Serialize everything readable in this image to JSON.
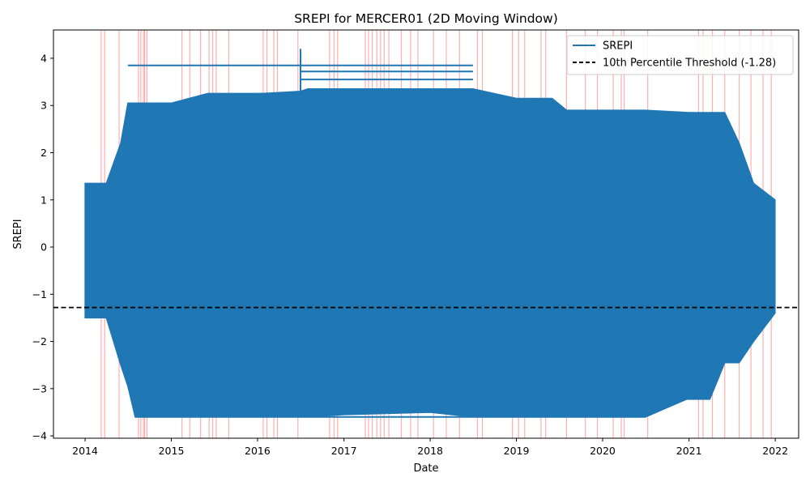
{
  "chart_data": {
    "type": "line",
    "title": "SREPI for MERCER01 (2D Moving Window)",
    "xlabel": "Date",
    "ylabel": "SREPI",
    "xlim": [
      "2013-08-20",
      "2022-04-10"
    ],
    "ylim": [
      -4.05,
      4.6
    ],
    "x_ticks": [
      "2014",
      "2015",
      "2016",
      "2017",
      "2018",
      "2019",
      "2020",
      "2021",
      "2022"
    ],
    "y_ticks": [
      -4,
      -3,
      -2,
      -1,
      0,
      1,
      2,
      3,
      4
    ],
    "y_tick_labels": [
      "−4",
      "−3",
      "−2",
      "−1",
      "0",
      "1",
      "2",
      "3",
      "4"
    ],
    "threshold": {
      "value": -1.28,
      "label": "10th Percentile Threshold (-1.28)",
      "color": "#000000",
      "style": "dashed"
    },
    "legend": {
      "position": "top-right",
      "entries": [
        "SREPI",
        "10th Percentile Threshold (-1.28)"
      ]
    },
    "grid": false,
    "series": [
      {
        "name": "SREPI",
        "color": "#1f77b4",
        "envelope": {
          "x": [
            "2014-01-01",
            "2014-04-01",
            "2014-06-01",
            "2014-07-01",
            "2014-08-01",
            "2014-10-01",
            "2015-01-01",
            "2015-06-01",
            "2016-01-01",
            "2016-07-01",
            "2016-08-01",
            "2017-01-01",
            "2018-01-01",
            "2018-07-01",
            "2019-01-01",
            "2019-06-01",
            "2019-08-01",
            "2020-01-01",
            "2020-07-01",
            "2021-01-01",
            "2021-04-01",
            "2021-06-01",
            "2021-08-01",
            "2021-10-01",
            "2021-12-31"
          ],
          "upper": [
            1.35,
            1.35,
            2.2,
            3.05,
            3.05,
            3.05,
            3.05,
            3.25,
            3.25,
            3.3,
            3.35,
            3.35,
            3.35,
            3.35,
            3.15,
            3.15,
            2.9,
            2.9,
            2.9,
            2.85,
            2.85,
            2.85,
            2.2,
            1.35,
            1.0
          ],
          "lower": [
            -1.5,
            -1.5,
            -2.5,
            -2.95,
            -3.6,
            -3.6,
            -3.6,
            -3.6,
            -3.6,
            -3.6,
            -3.6,
            -3.55,
            -3.5,
            -3.6,
            -3.6,
            -3.6,
            -3.6,
            -3.6,
            -3.6,
            -3.2,
            -3.2,
            -2.45,
            -2.45,
            -2.0,
            -1.4
          ]
        },
        "peak": {
          "x": "2016-07-01",
          "y": 4.2
        }
      }
    ],
    "drought_events": [
      "2014-03-10",
      "2014-03-25",
      "2014-05-25",
      "2014-08-15",
      "2014-08-25",
      "2014-09-05",
      "2014-09-10",
      "2014-09-20",
      "2015-02-15",
      "2015-03-20",
      "2015-05-05",
      "2015-06-10",
      "2015-06-25",
      "2015-07-10",
      "2015-09-01",
      "2016-01-25",
      "2016-02-10",
      "2016-03-10",
      "2016-03-25",
      "2016-06-20",
      "2016-11-01",
      "2016-11-20",
      "2016-12-05",
      "2017-04-01",
      "2017-04-15",
      "2017-05-01",
      "2017-05-20",
      "2017-06-05",
      "2017-06-20",
      "2017-07-10",
      "2017-09-01",
      "2017-10-10",
      "2017-11-10",
      "2018-01-15",
      "2018-03-10",
      "2018-05-05",
      "2018-07-20",
      "2018-08-10",
      "2018-12-15",
      "2019-01-10",
      "2019-02-05",
      "2019-04-15",
      "2019-05-05",
      "2019-08-01",
      "2019-10-20",
      "2019-12-10",
      "2020-02-15",
      "2020-03-20",
      "2020-04-01",
      "2020-07-10",
      "2021-02-10",
      "2021-03-01",
      "2021-04-10",
      "2021-06-01",
      "2021-08-01",
      "2021-09-20",
      "2021-11-10",
      "2021-12-15"
    ]
  }
}
